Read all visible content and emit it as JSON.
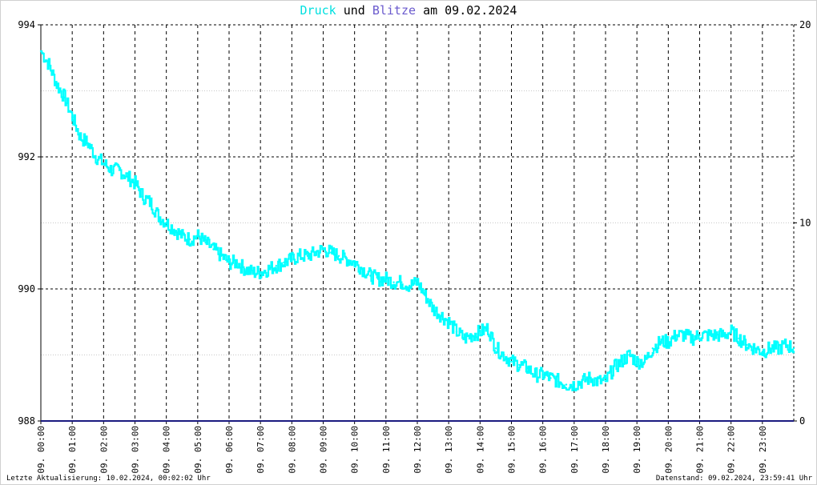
{
  "title": {
    "word1": "Druck",
    "joiner": "und",
    "word2": "Blitze",
    "suffix": "am 09.02.2024"
  },
  "footer": {
    "left": "Letzte Aktualisierung: 10.02.2024, 00:02:02 Uhr",
    "right": "Datenstand: 09.02.2024, 23:59:41 Uhr"
  },
  "colors": {
    "pressure": "#00ffff",
    "lightning": "#1a1a80",
    "title_word1": "#00e0e0",
    "title_word2": "#6a5acd",
    "grid_major": "#000000",
    "grid_minor": "#c8c8c8"
  },
  "chart_data": {
    "type": "line",
    "xlim": [
      0,
      24
    ],
    "ylim_left": [
      988,
      994
    ],
    "ylim_right": [
      0,
      20
    ],
    "left_ticks": [
      "988",
      "990",
      "992",
      "994"
    ],
    "right_ticks": [
      "0",
      "10",
      "20"
    ],
    "x_tick_labels": [
      "09. 00:00",
      "09. 01:00",
      "09. 02:00",
      "09. 03:00",
      "09. 04:00",
      "09. 05:00",
      "09. 06:00",
      "09. 07:00",
      "09. 08:00",
      "09. 09:00",
      "09. 10:00",
      "09. 11:00",
      "09. 12:00",
      "09. 13:00",
      "09. 14:00",
      "09. 15:00",
      "09. 16:00",
      "09. 17:00",
      "09. 18:00",
      "09. 19:00",
      "09. 20:00",
      "09. 21:00",
      "09. 22:00",
      "09. 23:00"
    ],
    "grid": true,
    "series": [
      {
        "name": "Druck",
        "axis": "left",
        "x": [
          0.0,
          0.25,
          0.5,
          0.75,
          1.0,
          1.25,
          1.5,
          1.75,
          2.0,
          2.25,
          2.5,
          2.75,
          3.0,
          3.25,
          3.5,
          3.75,
          4.0,
          4.25,
          4.5,
          4.75,
          5.0,
          5.25,
          5.5,
          5.75,
          6.0,
          6.25,
          6.5,
          6.75,
          7.0,
          7.25,
          7.5,
          7.75,
          8.0,
          8.25,
          8.5,
          8.75,
          9.0,
          9.25,
          9.5,
          9.75,
          10.0,
          10.25,
          10.5,
          10.75,
          11.0,
          11.25,
          11.5,
          11.75,
          12.0,
          12.25,
          12.5,
          12.75,
          13.0,
          13.25,
          13.5,
          13.75,
          14.0,
          14.25,
          14.5,
          14.75,
          15.0,
          15.25,
          15.5,
          15.75,
          16.0,
          16.25,
          16.5,
          16.75,
          17.0,
          17.25,
          17.5,
          17.75,
          18.0,
          18.25,
          18.5,
          18.75,
          19.0,
          19.25,
          19.5,
          19.75,
          20.0,
          20.25,
          20.5,
          20.75,
          21.0,
          21.25,
          21.5,
          21.75,
          22.0,
          22.25,
          22.5,
          22.75,
          23.0,
          23.25,
          23.5,
          23.75,
          24.0
        ],
        "values": [
          993.6,
          993.4,
          993.1,
          992.9,
          992.6,
          992.3,
          992.2,
          992.0,
          991.9,
          991.8,
          991.8,
          991.7,
          991.6,
          991.4,
          991.3,
          991.1,
          991.0,
          990.9,
          990.8,
          990.75,
          990.8,
          990.7,
          990.6,
          990.5,
          990.4,
          990.4,
          990.3,
          990.25,
          990.25,
          990.3,
          990.35,
          990.4,
          990.45,
          990.5,
          990.5,
          990.55,
          990.6,
          990.55,
          990.5,
          990.45,
          990.4,
          990.3,
          990.2,
          990.15,
          990.15,
          990.1,
          990.1,
          990.05,
          990.1,
          989.9,
          989.7,
          989.6,
          989.5,
          989.35,
          989.25,
          989.3,
          989.35,
          989.4,
          989.1,
          989.0,
          988.9,
          988.85,
          988.8,
          988.7,
          988.7,
          988.65,
          988.6,
          988.55,
          988.55,
          988.6,
          988.65,
          988.6,
          988.6,
          988.8,
          988.9,
          989.0,
          988.9,
          988.9,
          989.1,
          989.2,
          989.2,
          989.3,
          989.3,
          989.25,
          989.3,
          989.3,
          989.3,
          989.3,
          989.35,
          989.25,
          989.15,
          989.1,
          989.05,
          989.1,
          989.1,
          989.15,
          989.1
        ]
      },
      {
        "name": "Blitze",
        "axis": "right",
        "x": [
          0,
          24
        ],
        "values": [
          0,
          0
        ]
      }
    ]
  }
}
